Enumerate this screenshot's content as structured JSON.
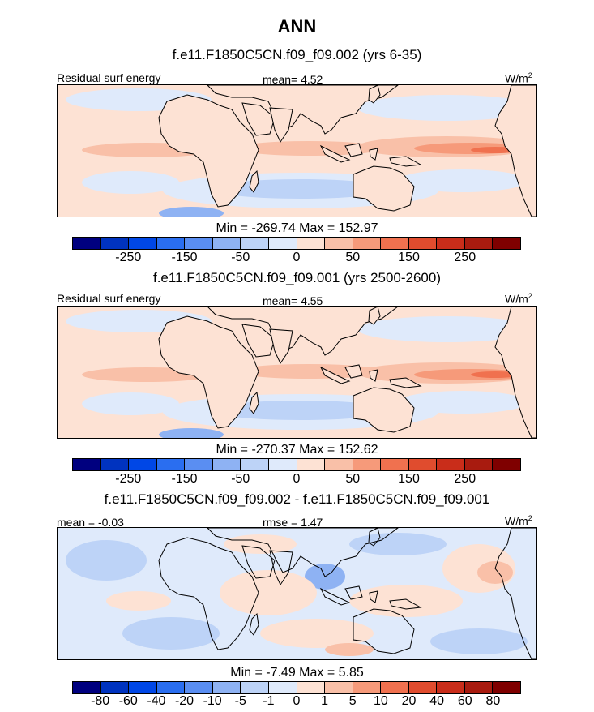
{
  "figure": {
    "title": "ANN",
    "colors": [
      "#00007f",
      "#0033bf",
      "#0047e6",
      "#2a6ef0",
      "#5a8ef2",
      "#8eb2f3",
      "#bdd3f7",
      "#dfeafb",
      "#fde2d4",
      "#f9c0a8",
      "#f69a7a",
      "#f0714f",
      "#e04c2e",
      "#c92d1a",
      "#a81b0f",
      "#7f0000"
    ]
  },
  "panel1": {
    "title": "f.e11.F1850C5CN.f09_f09.002 (yrs 6-35)",
    "left_label": "Residual surf energy",
    "center_label": "mean=   4.52",
    "units": "W/m",
    "units_sup": "2",
    "minmax": "Min = -269.74 Max = 152.97",
    "ticks": [
      "-250",
      "-150",
      "-50",
      "0",
      "50",
      "150",
      "250"
    ]
  },
  "panel2": {
    "title": "f.e11.F1850C5CN.f09_f09.001 (yrs 2500-2600)",
    "left_label": "Residual surf energy",
    "center_label": "mean=   4.55",
    "units": "W/m",
    "units_sup": "2",
    "minmax": "Min = -270.37 Max = 152.62",
    "ticks": [
      "-250",
      "-150",
      "-50",
      "0",
      "50",
      "150",
      "250"
    ]
  },
  "panel3": {
    "title": "f.e11.F1850C5CN.f09_f09.002 - f.e11.F1850C5CN.f09_f09.001",
    "left_label": "mean =  -0.03",
    "center_label": "rmse =   1.47",
    "units": "W/m",
    "units_sup": "2",
    "minmax": "Min =  -7.49 Max =   5.85",
    "ticks": [
      "-80",
      "-60",
      "-40",
      "-20",
      "-10",
      "-5",
      "-1",
      "0",
      "1",
      "5",
      "10",
      "20",
      "40",
      "60",
      "80"
    ]
  }
}
